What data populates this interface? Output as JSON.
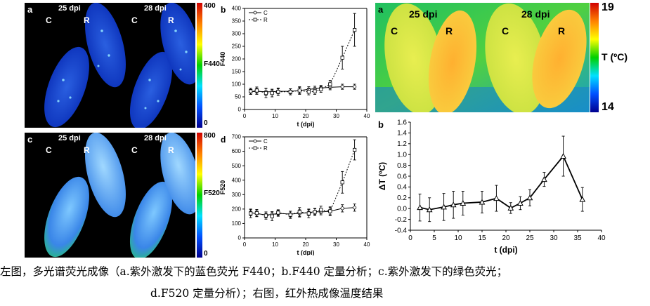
{
  "panel_a": {
    "letter": "a",
    "dpi_left": "25 dpi",
    "dpi_right": "28 dpi",
    "c_left": "C",
    "r_left": "R",
    "c_right": "C",
    "r_right": "R",
    "cbar_max": "400",
    "cbar_min": "0",
    "cbar_label": "F440"
  },
  "panel_c": {
    "letter": "c",
    "dpi_left": "25 dpi",
    "dpi_right": "28 dpi",
    "c_left": "C",
    "r_left": "R",
    "c_right": "C",
    "r_right": "R",
    "cbar_max": "800",
    "cbar_min": "0",
    "cbar_label": "F520"
  },
  "thermal": {
    "letter": "a",
    "dpi_left": "25 dpi",
    "dpi_right": "28 dpi",
    "c_left": "C",
    "r_left": "R",
    "c_right": "C",
    "r_right": "R",
    "scale_max": "19",
    "scale_min": "14",
    "scale_label": "T (ºC)"
  },
  "caption": {
    "line1": "左图，多光谱荧光成像（a.紫外激发下的蓝色荧光 F440；b.F440 定量分析；c.紫外激发下的绿色荧光；",
    "line2": "d.F520 定量分析）；右图，红外热成像温度结果"
  },
  "chart_data": [
    {
      "id": "b-left",
      "letter": "b",
      "type": "line",
      "xlabel": "t (dpi)",
      "ylabel": "F440",
      "xlim": [
        0,
        40
      ],
      "ylim": [
        0,
        400
      ],
      "xticks": [
        0,
        10,
        20,
        30,
        40
      ],
      "yticks": [
        0,
        50,
        100,
        150,
        200,
        250,
        300,
        350,
        400
      ],
      "legend": [
        "C",
        "R"
      ],
      "series": [
        {
          "name": "C",
          "x": [
            2,
            4,
            7,
            9,
            11,
            15,
            18,
            21,
            23,
            25,
            28,
            32,
            36
          ],
          "y": [
            70,
            72,
            70,
            70,
            72,
            72,
            75,
            80,
            82,
            85,
            88,
            90,
            90
          ],
          "err": [
            10,
            12,
            14,
            10,
            10,
            10,
            12,
            10,
            10,
            10,
            10,
            10,
            10
          ]
        },
        {
          "name": "R",
          "x": [
            2,
            4,
            7,
            9,
            11,
            15,
            18,
            21,
            23,
            25,
            28,
            32,
            36
          ],
          "y": [
            72,
            75,
            65,
            65,
            70,
            70,
            75,
            70,
            72,
            80,
            100,
            205,
            315
          ],
          "err": [
            12,
            14,
            18,
            15,
            15,
            12,
            15,
            12,
            12,
            12,
            15,
            45,
            65
          ]
        }
      ]
    },
    {
      "id": "d-left",
      "letter": "d",
      "type": "line",
      "xlabel": "t (dpi)",
      "ylabel": "F520",
      "xlim": [
        0,
        40
      ],
      "ylim": [
        0,
        700
      ],
      "xticks": [
        0,
        10,
        20,
        30,
        40
      ],
      "yticks": [
        0,
        100,
        200,
        300,
        400,
        500,
        600,
        700
      ],
      "legend": [
        "C",
        "R"
      ],
      "series": [
        {
          "name": "C",
          "x": [
            2,
            4,
            7,
            9,
            11,
            15,
            18,
            21,
            23,
            25,
            28,
            32,
            36
          ],
          "y": [
            175,
            168,
            160,
            162,
            170,
            165,
            170,
            175,
            182,
            180,
            185,
            205,
            210
          ],
          "err": [
            20,
            20,
            20,
            20,
            20,
            20,
            25,
            20,
            20,
            20,
            25,
            25,
            25
          ]
        },
        {
          "name": "R",
          "x": [
            2,
            4,
            7,
            9,
            11,
            15,
            18,
            21,
            23,
            25,
            28,
            32,
            36
          ],
          "y": [
            170,
            172,
            155,
            150,
            175,
            160,
            180,
            170,
            180,
            195,
            185,
            385,
            610
          ],
          "err": [
            30,
            25,
            25,
            30,
            20,
            25,
            30,
            30,
            25,
            25,
            30,
            75,
            70
          ]
        }
      ]
    },
    {
      "id": "b-right",
      "letter": "b",
      "type": "line",
      "xlabel": "t (dpi)",
      "ylabel": "ΔT (ºC)",
      "xlim": [
        0,
        40
      ],
      "ylim": [
        -0.4,
        1.6
      ],
      "xticks": [
        0,
        5,
        10,
        15,
        20,
        25,
        30,
        35,
        40
      ],
      "yticks": [
        -0.4,
        -0.2,
        0.0,
        0.2,
        0.4,
        0.6,
        0.8,
        1.0,
        1.2,
        1.4,
        1.6
      ],
      "ytick_labels": [
        "-0.4",
        "-0.2",
        "0.0",
        "0.2",
        "0.4",
        "0.6",
        "0.8",
        "1.0",
        "1.2",
        "1.4",
        "1.6"
      ],
      "series": [
        {
          "name": "",
          "x": [
            2,
            4,
            7,
            9,
            11,
            15,
            18,
            21,
            23,
            25,
            28,
            32,
            36
          ],
          "y": [
            0.02,
            -0.02,
            0.03,
            0.07,
            0.1,
            0.12,
            0.19,
            0.01,
            0.1,
            0.2,
            0.54,
            0.97,
            0.17
          ],
          "err": [
            0.25,
            0.22,
            0.25,
            0.25,
            0.22,
            0.2,
            0.24,
            0.1,
            0.12,
            0.15,
            0.13,
            0.37,
            0.22
          ]
        }
      ]
    }
  ]
}
